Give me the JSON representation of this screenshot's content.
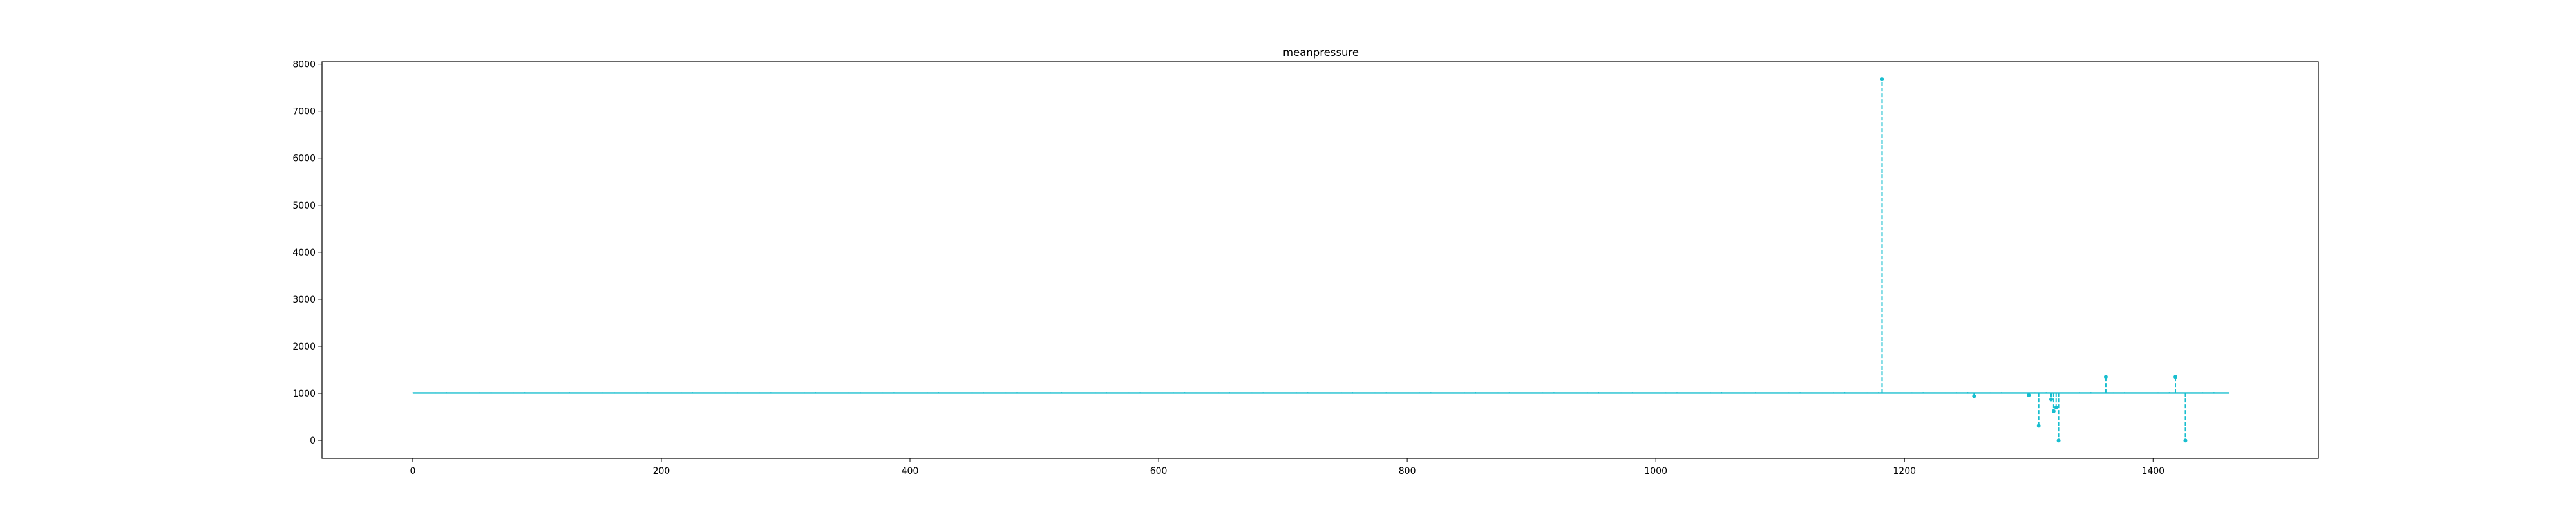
{
  "chart_data": {
    "type": "line",
    "title": "meanpressure",
    "xlabel": "",
    "ylabel": "",
    "xlim": [
      -73,
      1533
    ],
    "ylim": [
      -383,
      8050
    ],
    "xticks": [
      0,
      200,
      400,
      600,
      800,
      1000,
      1200,
      1400
    ],
    "yticks": [
      0,
      1000,
      2000,
      3000,
      4000,
      5000,
      6000,
      7000,
      8000
    ],
    "grid": false,
    "legend": "none",
    "line_style": "dashed",
    "marker": "dot",
    "color": "#17becf",
    "series": [
      {
        "x_start": 0,
        "x_end": 1461,
        "baseline": 1011,
        "baseline_range": [
          991,
          1023
        ],
        "spikes": [
          {
            "x": 1182,
            "y": 7679
          },
          {
            "x": 1256,
            "y": 938
          },
          {
            "x": 1300,
            "y": 960
          },
          {
            "x": 1308,
            "y": 310
          },
          {
            "x": 1318,
            "y": 870
          },
          {
            "x": 1320,
            "y": 620
          },
          {
            "x": 1322,
            "y": 700
          },
          {
            "x": 1324,
            "y": -3
          },
          {
            "x": 1362,
            "y": 1350
          },
          {
            "x": 1418,
            "y": 1350
          },
          {
            "x": 1426,
            "y": -3
          }
        ]
      }
    ]
  }
}
